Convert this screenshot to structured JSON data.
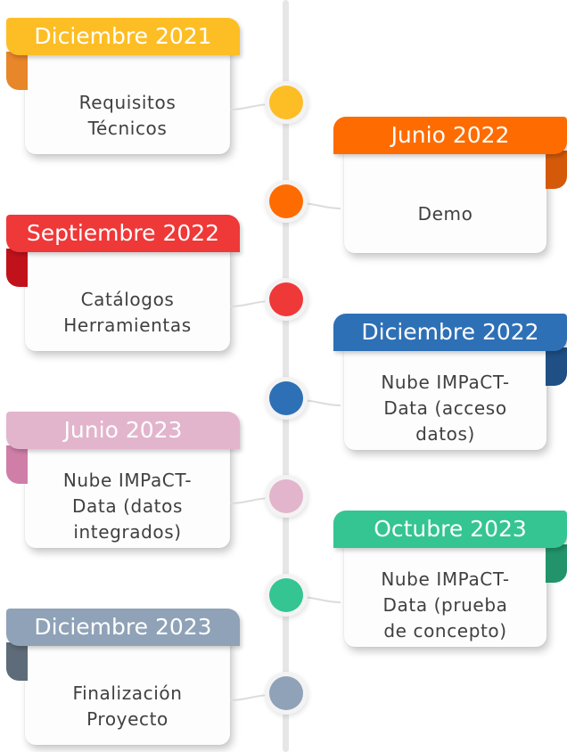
{
  "milestones": [
    {
      "date": "Diciembre 2021",
      "lines": [
        "Requisitos",
        "Técnicos"
      ],
      "color": "#FDBE25",
      "fold_color": "#E8862A",
      "side": "left"
    },
    {
      "date": "Junio 2022",
      "lines": [
        "Demo"
      ],
      "color": "#FE6B00",
      "fold_color": "#D45A0A",
      "side": "right"
    },
    {
      "date": "Septiembre 2022",
      "lines": [
        "Catálogos",
        "Herramientas"
      ],
      "color": "#EF3838",
      "fold_color": "#C1121C",
      "side": "left"
    },
    {
      "date": "Diciembre 2022",
      "lines": [
        "Nube IMPaCT-",
        "Data (acceso",
        "datos)"
      ],
      "color": "#2E70B6",
      "fold_color": "#1F4F84",
      "side": "right"
    },
    {
      "date": "Junio 2023",
      "lines": [
        "Nube IMPaCT-",
        "Data (datos",
        "integrados)"
      ],
      "color": "#E2B5CD",
      "fold_color": "#CF7EA8",
      "side": "left"
    },
    {
      "date": "Octubre 2023",
      "lines": [
        "Nube IMPaCT-",
        "Data (prueba",
        "de concepto)"
      ],
      "color": "#34C592",
      "fold_color": "#22936B",
      "side": "right"
    },
    {
      "date": "Diciembre 2023",
      "lines": [
        "Finalización",
        "Proyecto"
      ],
      "color": "#8FA2B7",
      "fold_color": "#5E6B78",
      "side": "left"
    }
  ]
}
